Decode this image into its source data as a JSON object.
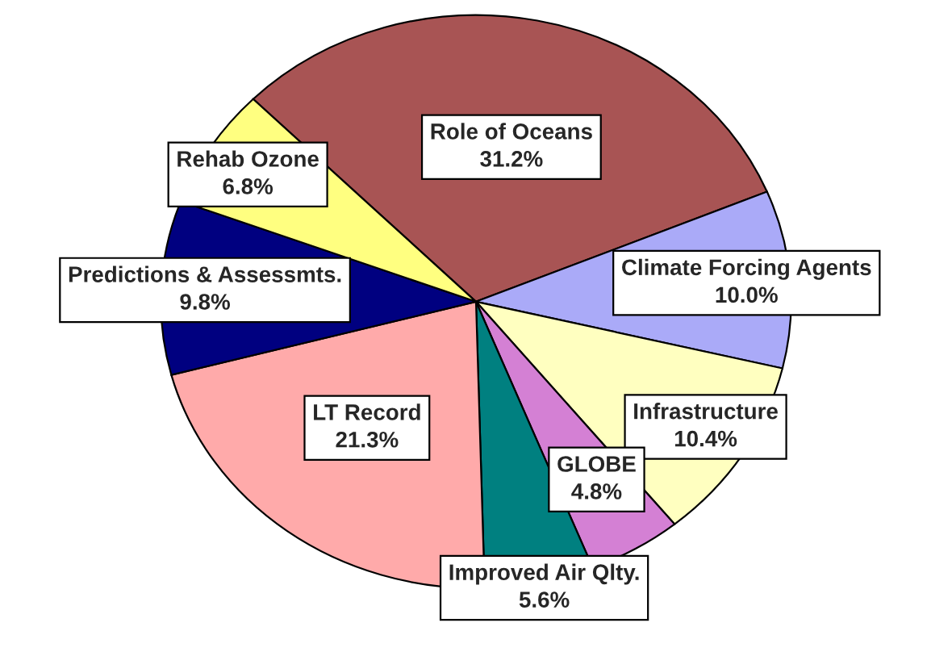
{
  "chart_data": {
    "type": "pie",
    "categories": [
      "Role of Oceans",
      "Climate Forcing Agents",
      "Infrastructure",
      "GLOBE",
      "Improved Air Qlty.",
      "LT Record",
      "Predictions & Assessmts.",
      "Rehab Ozone"
    ],
    "values": [
      31.2,
      10.0,
      10.4,
      4.8,
      5.6,
      21.3,
      9.8,
      6.8
    ],
    "value_labels": [
      "31.2%",
      "10.0%",
      "10.4%",
      "4.8%",
      "5.6%",
      "21.3%",
      "9.8%",
      "6.8%"
    ],
    "colors": [
      "#a85454",
      "#aaaaf8",
      "#ffffc0",
      "#d480d4",
      "#008080",
      "#ffaaaa",
      "#000080",
      "#ffff80"
    ],
    "legend": false
  }
}
